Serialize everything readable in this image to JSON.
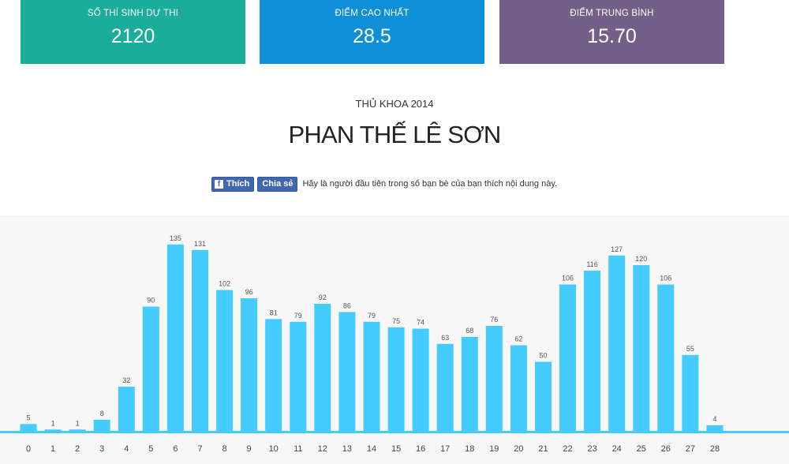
{
  "stats": {
    "candidates": {
      "label": "SỐ THÍ SINH DỰ THI",
      "value": "2120",
      "color": "#1aad9a"
    },
    "highest": {
      "label": "ĐIỂM CAO NHẤT",
      "value": "28.5",
      "color": "#108fd9"
    },
    "average": {
      "label": "ĐIỂM TRUNG BÌNH",
      "value": "15.70",
      "color": "#735f87"
    }
  },
  "subtitle": "THỦ KHOA 2014",
  "winner": "PHAN THẾ LÊ SƠN",
  "social": {
    "like_label": "Thích",
    "share_label": "Chia sẻ",
    "text": "Hãy là người đầu tiên trong số bạn bè của bạn thích nội dung này."
  },
  "chart_data": {
    "type": "bar",
    "categories": [
      "0",
      "1",
      "2",
      "3",
      "4",
      "5",
      "6",
      "7",
      "8",
      "9",
      "10",
      "11",
      "12",
      "13",
      "14",
      "15",
      "16",
      "17",
      "18",
      "19",
      "20",
      "21",
      "22",
      "23",
      "24",
      "25",
      "26",
      "27",
      "28"
    ],
    "values": [
      5,
      1,
      1,
      8,
      32,
      90,
      135,
      131,
      102,
      96,
      81,
      79,
      92,
      86,
      79,
      75,
      74,
      63,
      68,
      76,
      62,
      50,
      106,
      116,
      127,
      120,
      106,
      55,
      4
    ],
    "title": "",
    "xlabel": "",
    "ylabel": "",
    "ylim": [
      0,
      140
    ],
    "grid": false,
    "bar_color": "#44ccff",
    "axis_color": "#44ccff"
  }
}
